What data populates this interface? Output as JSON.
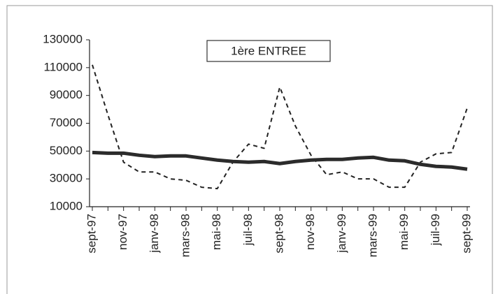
{
  "chart_data": {
    "type": "line",
    "title": "1ère ENTREE",
    "categories": [
      "sept-97",
      null,
      "nov-97",
      null,
      "janv-98",
      null,
      "mars-98",
      null,
      "mai-98",
      null,
      "juil-98",
      null,
      "sept-98",
      null,
      "nov-98",
      null,
      "janv-99",
      null,
      "mars-99",
      null,
      "mai-99",
      null,
      "juil-99",
      null,
      "sept-99"
    ],
    "series": [
      {
        "color": "#222222",
        "style": "dashed",
        "values": [
          112000,
          76000,
          42000,
          35000,
          35000,
          30000,
          29000,
          24000,
          23000,
          42000,
          55000,
          52000,
          96000,
          68000,
          47000,
          33000,
          35000,
          30000,
          30000,
          24000,
          24000,
          42000,
          48000,
          49000,
          81000
        ]
      },
      {
        "color": "#2b2b2b",
        "style": "solid",
        "values": [
          49000,
          48500,
          48500,
          47000,
          46000,
          46500,
          46500,
          45000,
          43500,
          42500,
          42000,
          42500,
          41000,
          42500,
          43500,
          44000,
          44000,
          45000,
          45500,
          43500,
          43000,
          40500,
          39000,
          38500,
          37000
        ]
      }
    ],
    "ylim": [
      10000,
      130000
    ],
    "yticks": [
      10000,
      30000,
      50000,
      70000,
      90000,
      110000,
      130000
    ],
    "grid": false
  }
}
